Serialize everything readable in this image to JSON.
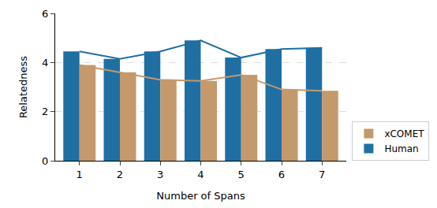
{
  "chart_data": {
    "type": "bar",
    "x_label": "Number of Spans",
    "y_label": "Relatedness",
    "categories": [
      "1",
      "2",
      "3",
      "4",
      "5",
      "6",
      "7"
    ],
    "series": [
      {
        "name": "Human",
        "color": "#1f6fa3",
        "values": [
          4.45,
          4.15,
          4.45,
          4.9,
          4.2,
          4.55,
          4.6
        ]
      },
      {
        "name": "xCOMET",
        "color": "#c4996c",
        "values": [
          3.9,
          3.6,
          3.3,
          3.25,
          3.5,
          2.9,
          2.85
        ]
      }
    ],
    "ylim": [
      0,
      6
    ],
    "yticks": [
      0,
      2,
      4,
      6
    ],
    "grid": true,
    "legend": "lower right"
  }
}
